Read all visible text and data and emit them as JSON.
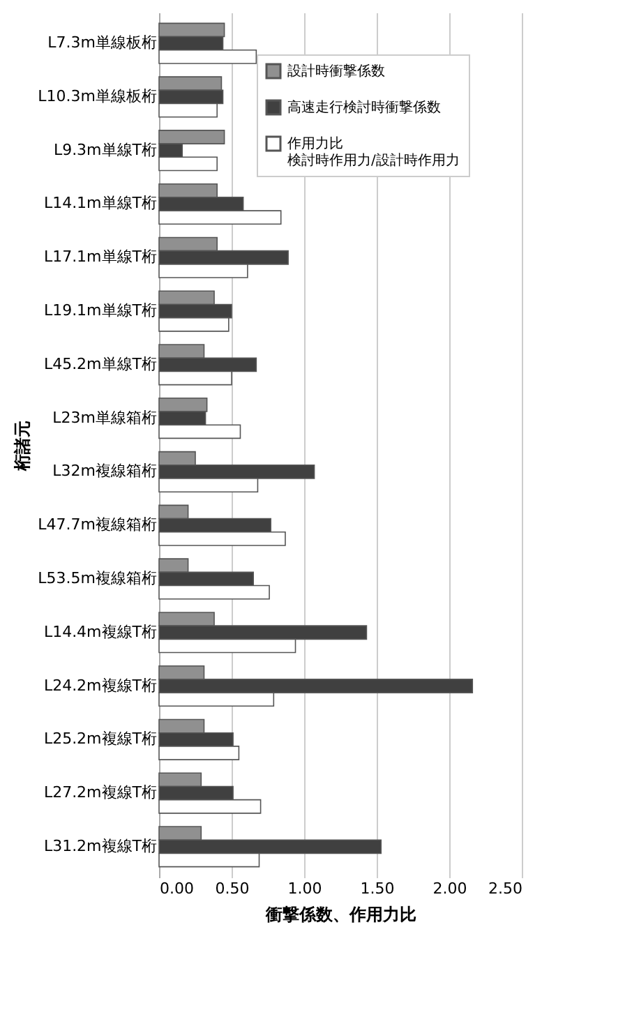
{
  "chart_data": {
    "type": "bar",
    "orientation": "horizontal",
    "xlabel": "衝撃係数、作用力比",
    "ylabel": "桁諸元",
    "categories": [
      "L7.3m単線板桁",
      "L10.3m単線板桁",
      "L9.3m単線T桁",
      "L14.1m単線T桁",
      "L17.1m単線T桁",
      "L19.1m単線T桁",
      "L45.2m単線T桁",
      "L23m単線箱桁",
      "L32m複線箱桁",
      "L47.7m複線箱桁",
      "L53.5m複線箱桁",
      "L14.4m複線T桁",
      "L24.2m複線T桁",
      "L25.2m複線T桁",
      "L27.2m複線T桁",
      "L31.2m複線T桁"
    ],
    "series": [
      {
        "name": "設計時衝撃係数",
        "color": "#909090",
        "values": [
          0.45,
          0.43,
          0.45,
          0.4,
          0.4,
          0.38,
          0.31,
          0.33,
          0.25,
          0.2,
          0.2,
          0.38,
          0.31,
          0.31,
          0.29,
          0.29
        ]
      },
      {
        "name": "高速走行検討時衝撃係数",
        "color": "#404040",
        "values": [
          0.44,
          0.44,
          0.16,
          0.58,
          0.89,
          0.5,
          0.67,
          0.32,
          1.07,
          0.77,
          0.65,
          1.43,
          2.16,
          0.51,
          0.51,
          1.53
        ]
      },
      {
        "name": "作用力比検討時作用力/設計時作用力",
        "color": "#ffffff",
        "values": [
          0.67,
          0.4,
          0.4,
          0.84,
          0.61,
          0.48,
          0.5,
          0.56,
          0.68,
          0.87,
          0.76,
          0.94,
          0.79,
          0.55,
          0.7,
          0.69
        ]
      }
    ],
    "xlim": [
      0,
      2.5
    ],
    "xticks": [
      {
        "value": 0,
        "label": "0.00"
      },
      {
        "value": 0.5,
        "label": "0.50"
      },
      {
        "value": 1,
        "label": "1.00"
      },
      {
        "value": 1.5,
        "label": "1.50"
      },
      {
        "value": 2,
        "label": "2.00"
      },
      {
        "value": 2.5,
        "label": "2.50"
      }
    ],
    "grid": "x",
    "legend": "top right"
  }
}
